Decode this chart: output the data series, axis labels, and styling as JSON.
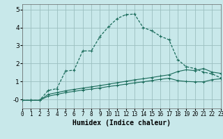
{
  "xlabel": "Humidex (Indice chaleur)",
  "bg_color": "#c8e8ea",
  "grid_color": "#9bbfbf",
  "line_color": "#1a6b5a",
  "xlim": [
    0,
    23
  ],
  "ylim": [
    -0.5,
    5.3
  ],
  "yticks": [
    0,
    1,
    2,
    3,
    4,
    5
  ],
  "xticks": [
    0,
    1,
    2,
    3,
    4,
    5,
    6,
    7,
    8,
    9,
    10,
    11,
    12,
    13,
    14,
    15,
    16,
    17,
    18,
    19,
    20,
    21,
    22,
    23
  ],
  "s1x": [
    0,
    1,
    2,
    3,
    4,
    5,
    6,
    7,
    8,
    9,
    10,
    11,
    12,
    13,
    14,
    15,
    16,
    17,
    18,
    19,
    20,
    21,
    22,
    23
  ],
  "s1y": [
    -0.05,
    -0.05,
    -0.05,
    0.18,
    0.28,
    0.38,
    0.45,
    0.52,
    0.58,
    0.64,
    0.72,
    0.78,
    0.85,
    0.92,
    0.98,
    1.05,
    1.12,
    1.18,
    1.05,
    1.0,
    0.98,
    0.98,
    1.1,
    1.15
  ],
  "s2x": [
    0,
    1,
    2,
    3,
    4,
    5,
    6,
    7,
    8,
    9,
    10,
    11,
    12,
    13,
    14,
    15,
    16,
    17,
    18,
    19,
    20,
    21,
    22,
    23
  ],
  "s2y": [
    -0.05,
    -0.05,
    -0.05,
    0.28,
    0.38,
    0.48,
    0.56,
    0.63,
    0.7,
    0.77,
    0.85,
    0.93,
    1.01,
    1.09,
    1.15,
    1.22,
    1.3,
    1.37,
    1.55,
    1.65,
    1.6,
    1.72,
    1.52,
    1.45
  ],
  "s3x": [
    0,
    1,
    2,
    3,
    4,
    5,
    6,
    7,
    8,
    9,
    10,
    11,
    12,
    13,
    14,
    15,
    16,
    17,
    18,
    19,
    20,
    21,
    22,
    23
  ],
  "s3y": [
    -0.05,
    -0.05,
    -0.05,
    0.5,
    0.6,
    1.58,
    1.63,
    2.7,
    2.7,
    3.5,
    4.05,
    4.5,
    4.72,
    4.75,
    4.0,
    3.82,
    3.52,
    3.32,
    2.22,
    1.82,
    1.72,
    1.52,
    1.42,
    1.2
  ]
}
